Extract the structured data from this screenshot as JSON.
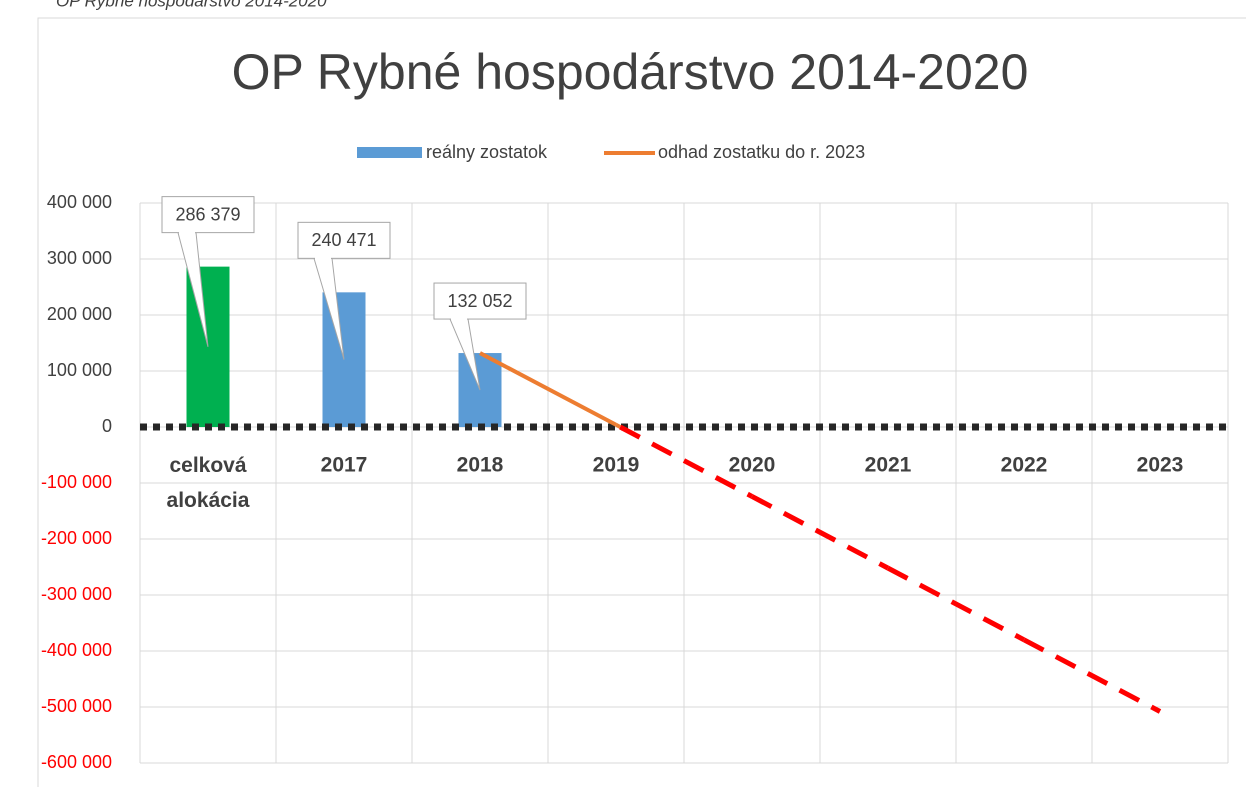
{
  "caption": "OP Rybné hospodárstvo 2014-2020",
  "chart_data": {
    "type": "bar-line",
    "title": "OP Rybné hospodárstvo 2014-2020",
    "categories": [
      "celková alokácia",
      "2017",
      "2018",
      "2019",
      "2020",
      "2021",
      "2022",
      "2023"
    ],
    "series": [
      {
        "name": "reálny zostatok",
        "type": "bar",
        "color": "#5b9bd5",
        "colors": [
          "#00b050",
          "#5b9bd5",
          "#5b9bd5",
          null,
          null,
          null,
          null,
          null
        ],
        "values": [
          286379,
          240471,
          132052,
          null,
          null,
          null,
          null,
          null
        ],
        "value_labels": [
          "286 379",
          "240 471",
          "132 052",
          null,
          null,
          null,
          null,
          null
        ]
      },
      {
        "name": "odhad zostatku do r. 2023",
        "type": "line",
        "color": "#ed7d31",
        "negative_color": "#ff0000",
        "values": [
          null,
          null,
          132052,
          4000,
          -124000,
          -252000,
          -380000,
          -508000
        ]
      }
    ],
    "ylim": [
      -600000,
      400000
    ],
    "yticks": [
      {
        "value": -600000,
        "label": "-600 000"
      },
      {
        "value": -500000,
        "label": "-500 000"
      },
      {
        "value": -400000,
        "label": "-400 000"
      },
      {
        "value": -300000,
        "label": "-300 000"
      },
      {
        "value": -200000,
        "label": "-200 000"
      },
      {
        "value": -100000,
        "label": "-100 000"
      },
      0,
      {
        "value": 100000,
        "label": "100 000"
      },
      {
        "value": 200000,
        "label": "200 000"
      },
      {
        "value": 300000,
        "label": "300 000"
      },
      {
        "value": 400000,
        "label": "400 000"
      }
    ],
    "negative_tick_color": "#ff0000",
    "zero_line": "dotted",
    "grid": true,
    "legend": "top"
  }
}
